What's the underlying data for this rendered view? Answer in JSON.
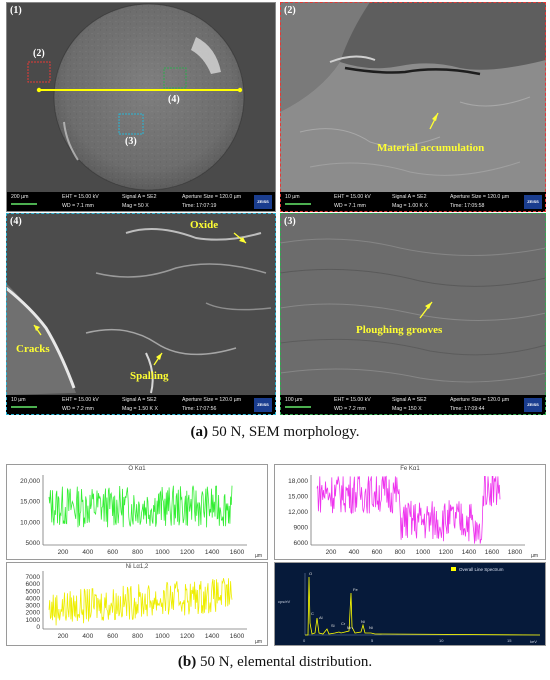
{
  "panel_a": {
    "caption_label": "(a)",
    "caption_text": " 50 N, SEM morphology.",
    "sem_panels": [
      {
        "id": "(1)",
        "scale": "200 µm",
        "eht": "EHT = 15.00 kV",
        "wd": "WD = 7.1 mm",
        "signal": "Signal A = SE2",
        "mag": "Mag = 50 X",
        "aperture": "Aperture Size = 120.0 µm",
        "time": "Time: 17:07:19",
        "border": "#888888"
      },
      {
        "id": "(2)",
        "scale": "10 µm",
        "eht": "EHT = 15.00 kV",
        "wd": "WD = 7.1 mm",
        "signal": "Signal A = SE2",
        "mag": "Mag = 1.00 K X",
        "aperture": "Aperture Size = 120.0 µm",
        "time": "Time: 17:05:58",
        "border": "#e53935"
      },
      {
        "id": "(4)",
        "scale": "10 µm",
        "eht": "EHT = 15.00 kV",
        "wd": "WD = 7.2 mm",
        "signal": "Signal A = SE2",
        "mag": "Mag = 1.50 K X",
        "aperture": "Aperture Size = 120.0 µm",
        "time": "Time: 17:07:56",
        "border": "#29b6d6"
      },
      {
        "id": "(3)",
        "scale": "100 µm",
        "eht": "EHT = 15.00 kV",
        "wd": "WD = 7.2 mm",
        "signal": "Signal A = SE2",
        "mag": "Mag = 150 X",
        "aperture": "Aperture Size = 120.0 µm",
        "time": "Time: 17:09:44",
        "border": "#2fa84f"
      }
    ],
    "zeiss_logo": "ZEISS",
    "inset_labels": {
      "two": "(2)",
      "three": "(3)",
      "four": "(4)"
    },
    "annotations": {
      "material": "Material accumulation",
      "oxide": "Oxide",
      "cracks": "Cracks",
      "spalling": "Spalling",
      "ploughing": "Ploughing grooves"
    },
    "colors": {
      "annotation": "#ffff33",
      "line_scan": "#ffff00"
    }
  },
  "panel_b": {
    "caption_label": "(b)",
    "caption_text": " 50 N, elemental distribution.",
    "charts": [
      {
        "title": "O Kα1",
        "color": "#33ee33",
        "y_ticks": [
          "20,000",
          "15,000",
          "10,000",
          "5000"
        ],
        "x_ticks": [
          "200",
          "400",
          "600",
          "800",
          "1000",
          "1200",
          "1400",
          "1600"
        ],
        "unit": "µm"
      },
      {
        "title": "Fe Kα1",
        "color": "#ee33ee",
        "y_ticks": [
          "18,000",
          "15,000",
          "12,000",
          "9000",
          "6000"
        ],
        "x_ticks": [
          "200",
          "400",
          "600",
          "800",
          "1000",
          "1200",
          "1400",
          "1600",
          "1800"
        ],
        "unit": "µm"
      },
      {
        "title": "Ni Lα1,2",
        "color": "#eeee00",
        "y_ticks": [
          "7000",
          "6000",
          "5000",
          "4000",
          "3000",
          "2000",
          "1000",
          "0"
        ],
        "x_ticks": [
          "200",
          "400",
          "600",
          "800",
          "1000",
          "1200",
          "1400",
          "1600"
        ],
        "unit": "µm"
      }
    ],
    "eds": {
      "legend": "Overall Line Spectrum",
      "peaks": [
        "O",
        "C",
        "Cr",
        "Cr",
        "Fe",
        "Fe",
        "Ni",
        "Ni",
        "Al",
        "Si",
        "Mn",
        "Fe"
      ],
      "y_label": "cps/eV",
      "x_label": "keV",
      "x_ticks": [
        "0",
        "5",
        "10",
        "15"
      ]
    }
  }
}
